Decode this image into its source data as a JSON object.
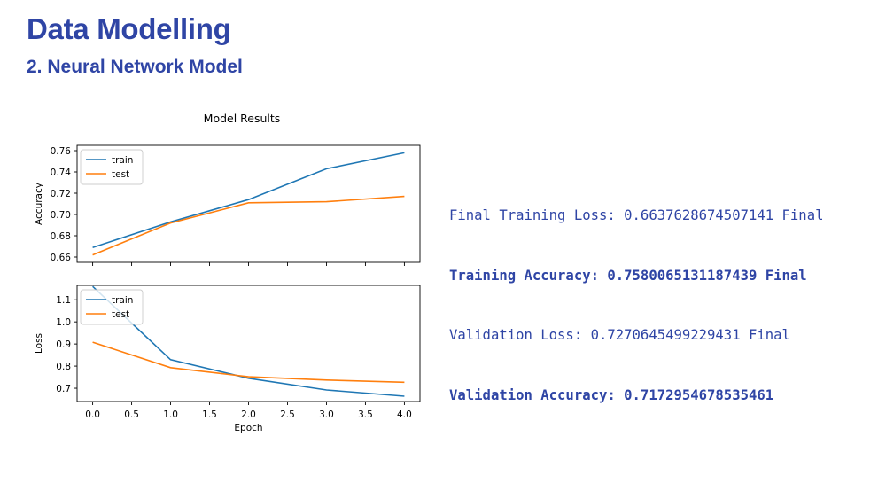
{
  "header": {
    "title": "Data Modelling",
    "subtitle": "2. Neural Network Model"
  },
  "colors": {
    "accent": "#2F45A5",
    "train": "#1f77b4",
    "test": "#ff7f0e"
  },
  "metrics": {
    "lines": [
      "Final Training Loss: 0.6637628674507141 Final",
      "Training Accuracy: 0.7580065131187439 Final",
      "Validation Loss: 0.7270645499229431 Final",
      "Validation Accuracy: 0.7172954678535461"
    ]
  },
  "figure_title": "Model Results",
  "chart_data": [
    {
      "type": "line",
      "title": "Model Results",
      "xlabel": "",
      "ylabel": "Accuracy",
      "x": [
        0,
        1,
        2,
        3,
        4
      ],
      "xlim": [
        -0.2,
        4.2
      ],
      "ylim": [
        0.655,
        0.765
      ],
      "yticks": [
        0.66,
        0.68,
        0.7,
        0.72,
        0.74,
        0.76
      ],
      "ytick_labels": [
        "0.66",
        "0.68",
        "0.70",
        "0.72",
        "0.74",
        "0.76"
      ],
      "series": [
        {
          "name": "train",
          "values": [
            0.669,
            0.693,
            0.714,
            0.743,
            0.758
          ]
        },
        {
          "name": "test",
          "values": [
            0.662,
            0.692,
            0.711,
            0.712,
            0.717
          ]
        }
      ],
      "legend": "top-left",
      "grid": false
    },
    {
      "type": "line",
      "title": "",
      "xlabel": "Epoch",
      "ylabel": "Loss",
      "x": [
        0,
        1,
        2,
        3,
        4
      ],
      "xlim": [
        -0.2,
        4.2
      ],
      "ylim": [
        0.64,
        1.165
      ],
      "xticks": [
        0.0,
        0.5,
        1.0,
        1.5,
        2.0,
        2.5,
        3.0,
        3.5,
        4.0
      ],
      "xtick_labels": [
        "0.0",
        "0.5",
        "1.0",
        "1.5",
        "2.0",
        "2.5",
        "3.0",
        "3.5",
        "4.0"
      ],
      "yticks": [
        0.7,
        0.8,
        0.9,
        1.0,
        1.1
      ],
      "ytick_labels": [
        "0.7",
        "0.8",
        "0.9",
        "1.0",
        "1.1"
      ],
      "series": [
        {
          "name": "train",
          "values": [
            1.16,
            0.829,
            0.745,
            0.692,
            0.664
          ]
        },
        {
          "name": "test",
          "values": [
            0.908,
            0.793,
            0.752,
            0.737,
            0.727
          ]
        }
      ],
      "legend": "top-left",
      "grid": false
    }
  ]
}
